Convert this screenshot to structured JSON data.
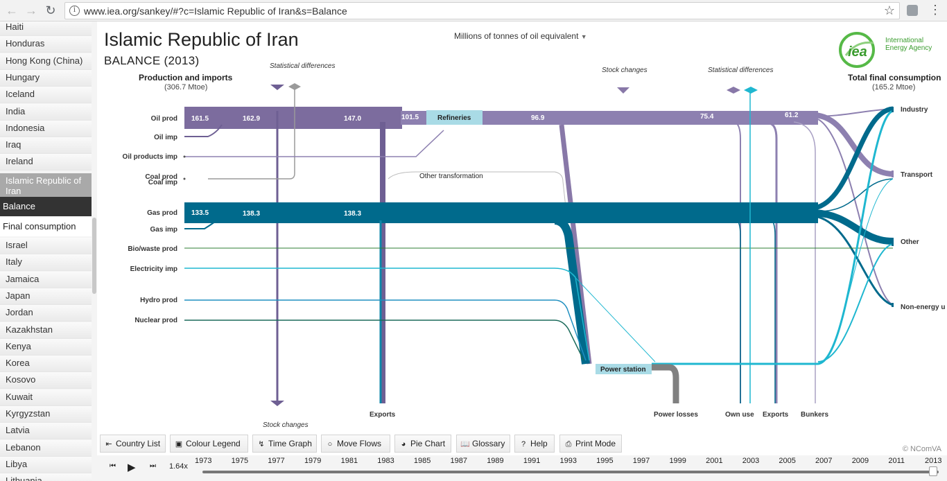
{
  "browser": {
    "url": "www.iea.org/sankey/#?c=Islamic Republic of Iran&s=Balance"
  },
  "sidebar": {
    "countries": [
      "Haiti",
      "Honduras",
      "Hong Kong (China)",
      "Hungary",
      "Iceland",
      "India",
      "Indonesia",
      "Iraq",
      "Ireland"
    ],
    "selected_country": "Islamic Republic of Iran",
    "subitems": [
      "Balance",
      "Final consumption"
    ],
    "countries_after": [
      "Israel",
      "Italy",
      "Jamaica",
      "Japan",
      "Jordan",
      "Kazakhstan",
      "Kenya",
      "Korea",
      "Kosovo",
      "Kuwait",
      "Kyrgyzstan",
      "Latvia",
      "Lebanon",
      "Libya",
      "Lithuania"
    ]
  },
  "header": {
    "title": "Islamic Republic of Iran",
    "subtitle": "BALANCE (2013)",
    "unit_selector": "Millions of tonnes of oil equivalent",
    "logo_text": "International Energy Agency",
    "logo_mark": "iea"
  },
  "diagram": {
    "left_header": "Production and imports",
    "left_total": "(306.7 Mtoe)",
    "right_header": "Total final consumption",
    "right_total": "(165.2 Mtoe)",
    "sources": [
      "Oil prod",
      "Oil imp",
      "Oil products imp",
      "Coal prod",
      "Coal imp",
      "Gas prod",
      "Gas imp",
      "Bio/waste prod",
      "Electricity imp",
      "Hydro prod",
      "Nuclear prod"
    ],
    "sinks": [
      "Industry",
      "Transport",
      "Other",
      "Non-energy u"
    ],
    "processes": [
      "Refineries",
      "Other transformation",
      "Power station"
    ],
    "bottom_labels": [
      "Stock changes",
      "Exports",
      "Power losses",
      "Own use",
      "Exports",
      "Bunkers"
    ],
    "top_labels": [
      "Statistical differences",
      "Stock  changes",
      "Statistical differences"
    ],
    "oil_values": [
      "161.5",
      "162.9",
      "147.0",
      "101.5",
      "96.9",
      "75.4",
      "61.2"
    ],
    "gas_values": [
      "133.5",
      "138.3",
      "138.3"
    ],
    "colors": {
      "oil": "#8878a8",
      "oil_dark": "#6e5f93",
      "gas": "#006a8c",
      "electricity": "#1fb7d0",
      "bio": "#2e7d32",
      "losses": "#808080",
      "process_box": "#a9dbe6"
    }
  },
  "toolbar": {
    "buttons": [
      "Country List",
      "Colour Legend",
      "Time Graph",
      "Move Flows",
      "Pie Chart",
      "Glossary",
      "Help",
      "Print Mode"
    ],
    "copyright": "© NComVA"
  },
  "timeline": {
    "speed": "1.64x",
    "years": [
      "1973",
      "1975",
      "1977",
      "1979",
      "1981",
      "1983",
      "1985",
      "1987",
      "1989",
      "1991",
      "1993",
      "1995",
      "1997",
      "1999",
      "2001",
      "2003",
      "2005",
      "2007",
      "2009",
      "2011",
      "2013"
    ],
    "current_year": "2013"
  }
}
